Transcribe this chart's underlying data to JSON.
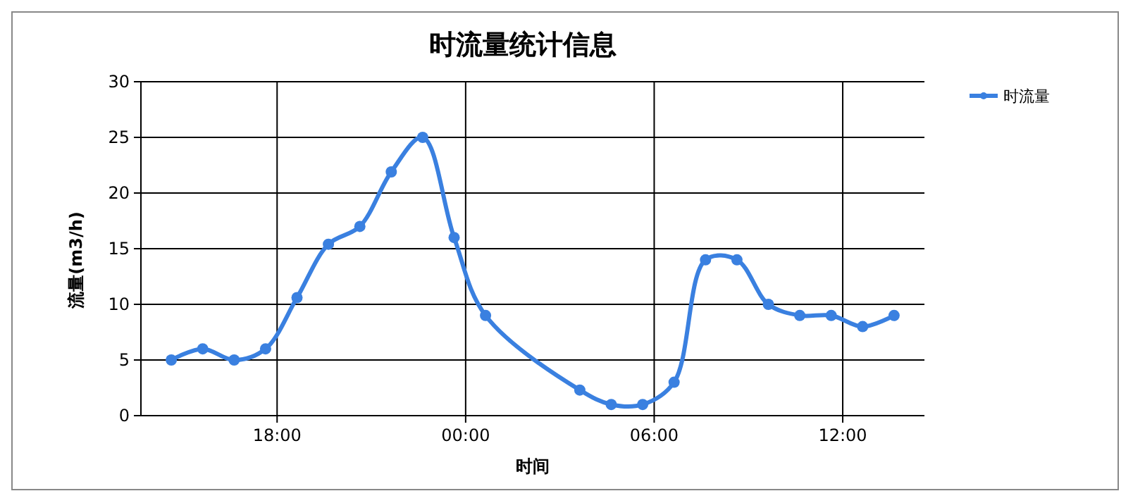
{
  "chart_data": {
    "type": "line",
    "title": "时流量统计信息",
    "xlabel": "时间",
    "ylabel": "流量(m3/h)",
    "xlim": [
      "2000-01-01T13:40",
      "2000-01-02T14:36"
    ],
    "xticks": [
      {
        "value": "2000-01-01T18:00",
        "label": "18:00"
      },
      {
        "value": "2000-01-02T00:00",
        "label": "00:00"
      },
      {
        "value": "2000-01-02T06:00",
        "label": "06:00"
      },
      {
        "value": "2000-01-02T12:00",
        "label": "12:00"
      }
    ],
    "ylim": [
      0,
      30
    ],
    "yticks": [
      0,
      5,
      10,
      15,
      20,
      25,
      30
    ],
    "grid": true,
    "legend": "top right",
    "marker": "circle",
    "series": [
      {
        "name": "时流量",
        "color": "#3a80e0",
        "x": [
          "2000-01-01T14:38",
          "2000-01-01T15:38",
          "2000-01-01T16:38",
          "2000-01-01T17:38",
          "2000-01-01T18:38",
          "2000-01-01T19:38",
          "2000-01-01T20:38",
          "2000-01-01T21:38",
          "2000-01-01T22:38",
          "2000-01-01T23:38",
          "2000-01-02T00:38",
          "2000-01-02T03:38",
          "2000-01-02T04:38",
          "2000-01-02T05:38",
          "2000-01-02T06:38",
          "2000-01-02T07:38",
          "2000-01-02T08:38",
          "2000-01-02T09:38",
          "2000-01-02T10:38",
          "2000-01-02T11:38",
          "2000-01-02T12:38",
          "2000-01-02T13:38"
        ],
        "values": [
          5,
          6,
          5,
          6,
          10.6,
          15.4,
          17,
          21.9,
          25,
          16,
          9,
          2.3,
          1,
          1,
          3,
          14,
          14,
          10,
          9,
          9,
          8,
          9
        ]
      }
    ]
  }
}
